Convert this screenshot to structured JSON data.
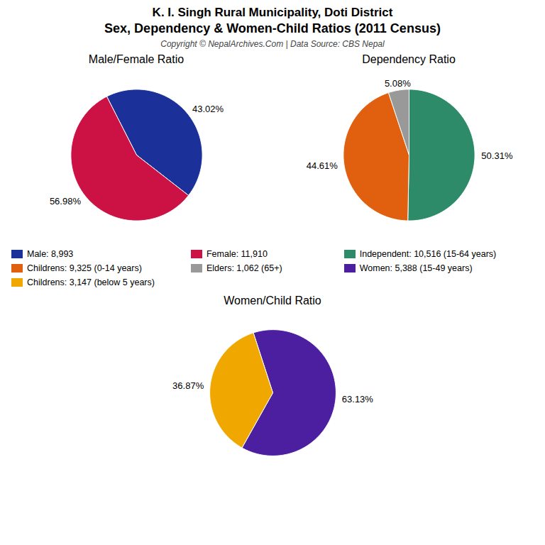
{
  "title": "K. I. Singh Rural Municipality, Doti District",
  "subtitle": "Sex, Dependency & Women-Child Ratios (2011 Census)",
  "annotations": [
    "Copyright © NepalArchives.Com | Data Source: CBS Nepal"
  ],
  "chart_data": [
    {
      "type": "pie",
      "title": "Male/Female Ratio",
      "categories": [
        "Male: 8,993",
        "Female: 11,910"
      ],
      "values": [
        43.02,
        56.98
      ],
      "value_labels": [
        "43.02%",
        "56.98%"
      ],
      "colors": [
        "#1c3099",
        "#cc1144"
      ],
      "data_labels": true,
      "legend": "bottom"
    },
    {
      "type": "pie",
      "title": "Dependency Ratio",
      "categories": [
        "Independent: 10,516 (15-64 years)",
        "Childrens: 9,325 (0-14 years)",
        "Elders: 1,062 (65+)"
      ],
      "values": [
        50.31,
        44.61,
        5.08
      ],
      "value_labels": [
        "50.31%",
        "44.61%",
        "5.08%"
      ],
      "colors": [
        "#2e8b6a",
        "#e06010",
        "#999999"
      ],
      "data_labels": true,
      "legend": "bottom"
    },
    {
      "type": "pie",
      "title": "Women/Child Ratio",
      "categories": [
        "Women: 5,388 (15-49 years)",
        "Childrens: 3,147 (below 5 years)"
      ],
      "values": [
        63.13,
        36.87
      ],
      "value_labels": [
        "63.13%",
        "36.87%"
      ],
      "colors": [
        "#4b1fa0",
        "#f0a800"
      ],
      "data_labels": true,
      "legend": "top"
    }
  ]
}
